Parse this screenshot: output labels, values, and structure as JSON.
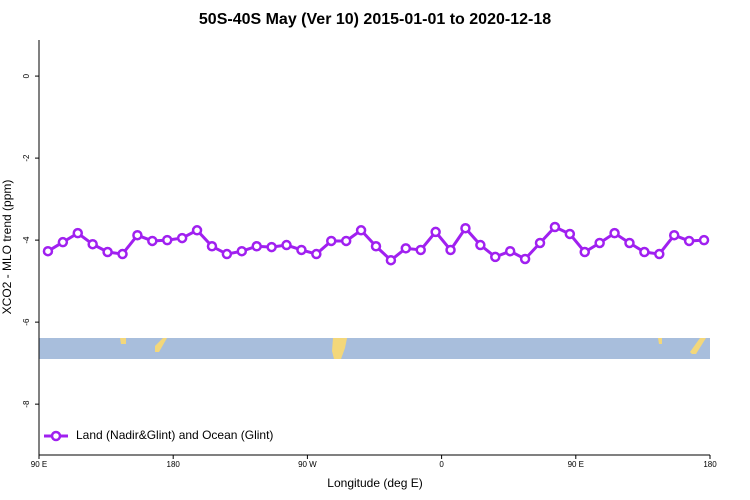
{
  "chart_data": {
    "type": "line",
    "title": "50S-40S May (Ver 10)   2015-01-01 to 2020-12-18",
    "x_label": "Longitude (deg E)",
    "y_label": "XCO2 - MLO trend (ppm)",
    "x": [
      96,
      106,
      116,
      126,
      136,
      146,
      156,
      166,
      176,
      186,
      196,
      206,
      216,
      226,
      236,
      246,
      256,
      266,
      276,
      286,
      296,
      306,
      316,
      326,
      336,
      346,
      356,
      366,
      376,
      386,
      396,
      406,
      416,
      426,
      436,
      446,
      456,
      466,
      476,
      486,
      496,
      506,
      516,
      526,
      536
    ],
    "series": [
      {
        "name": "Land (Nadir&Glint) and Ocean (Glint)",
        "color": "#a020f0",
        "values": [
          -4.27,
          -4.05,
          -3.83,
          -4.1,
          -4.29,
          -4.34,
          -3.88,
          -4.02,
          -4.0,
          -3.95,
          -3.76,
          -4.15,
          -4.34,
          -4.27,
          -4.15,
          -4.17,
          -4.12,
          -4.24,
          -4.34,
          -4.02,
          -4.02,
          -3.76,
          -4.15,
          -4.49,
          -4.2,
          -4.24,
          -3.8,
          -4.24,
          -3.71,
          -4.12,
          -4.41,
          -4.27,
          -4.46,
          -4.07,
          -3.68,
          -3.85,
          -4.29,
          -4.07,
          -3.83,
          -4.07,
          -4.29,
          -4.34,
          -3.88,
          -4.02,
          -4.0
        ]
      }
    ],
    "xlim": [
      90,
      540
    ],
    "xticks": [
      {
        "value": 90,
        "label": "90 E"
      },
      {
        "value": 180,
        "label": "180"
      },
      {
        "value": 270,
        "label": "90 W"
      },
      {
        "value": 360,
        "label": "0"
      },
      {
        "value": 450,
        "label": "90 E"
      },
      {
        "value": 540,
        "label": "180"
      }
    ],
    "ylim": [
      -9.24,
      0.88
    ],
    "yticks": [
      0,
      -2,
      -4,
      -6,
      -8
    ],
    "legend": "bottom-left"
  }
}
